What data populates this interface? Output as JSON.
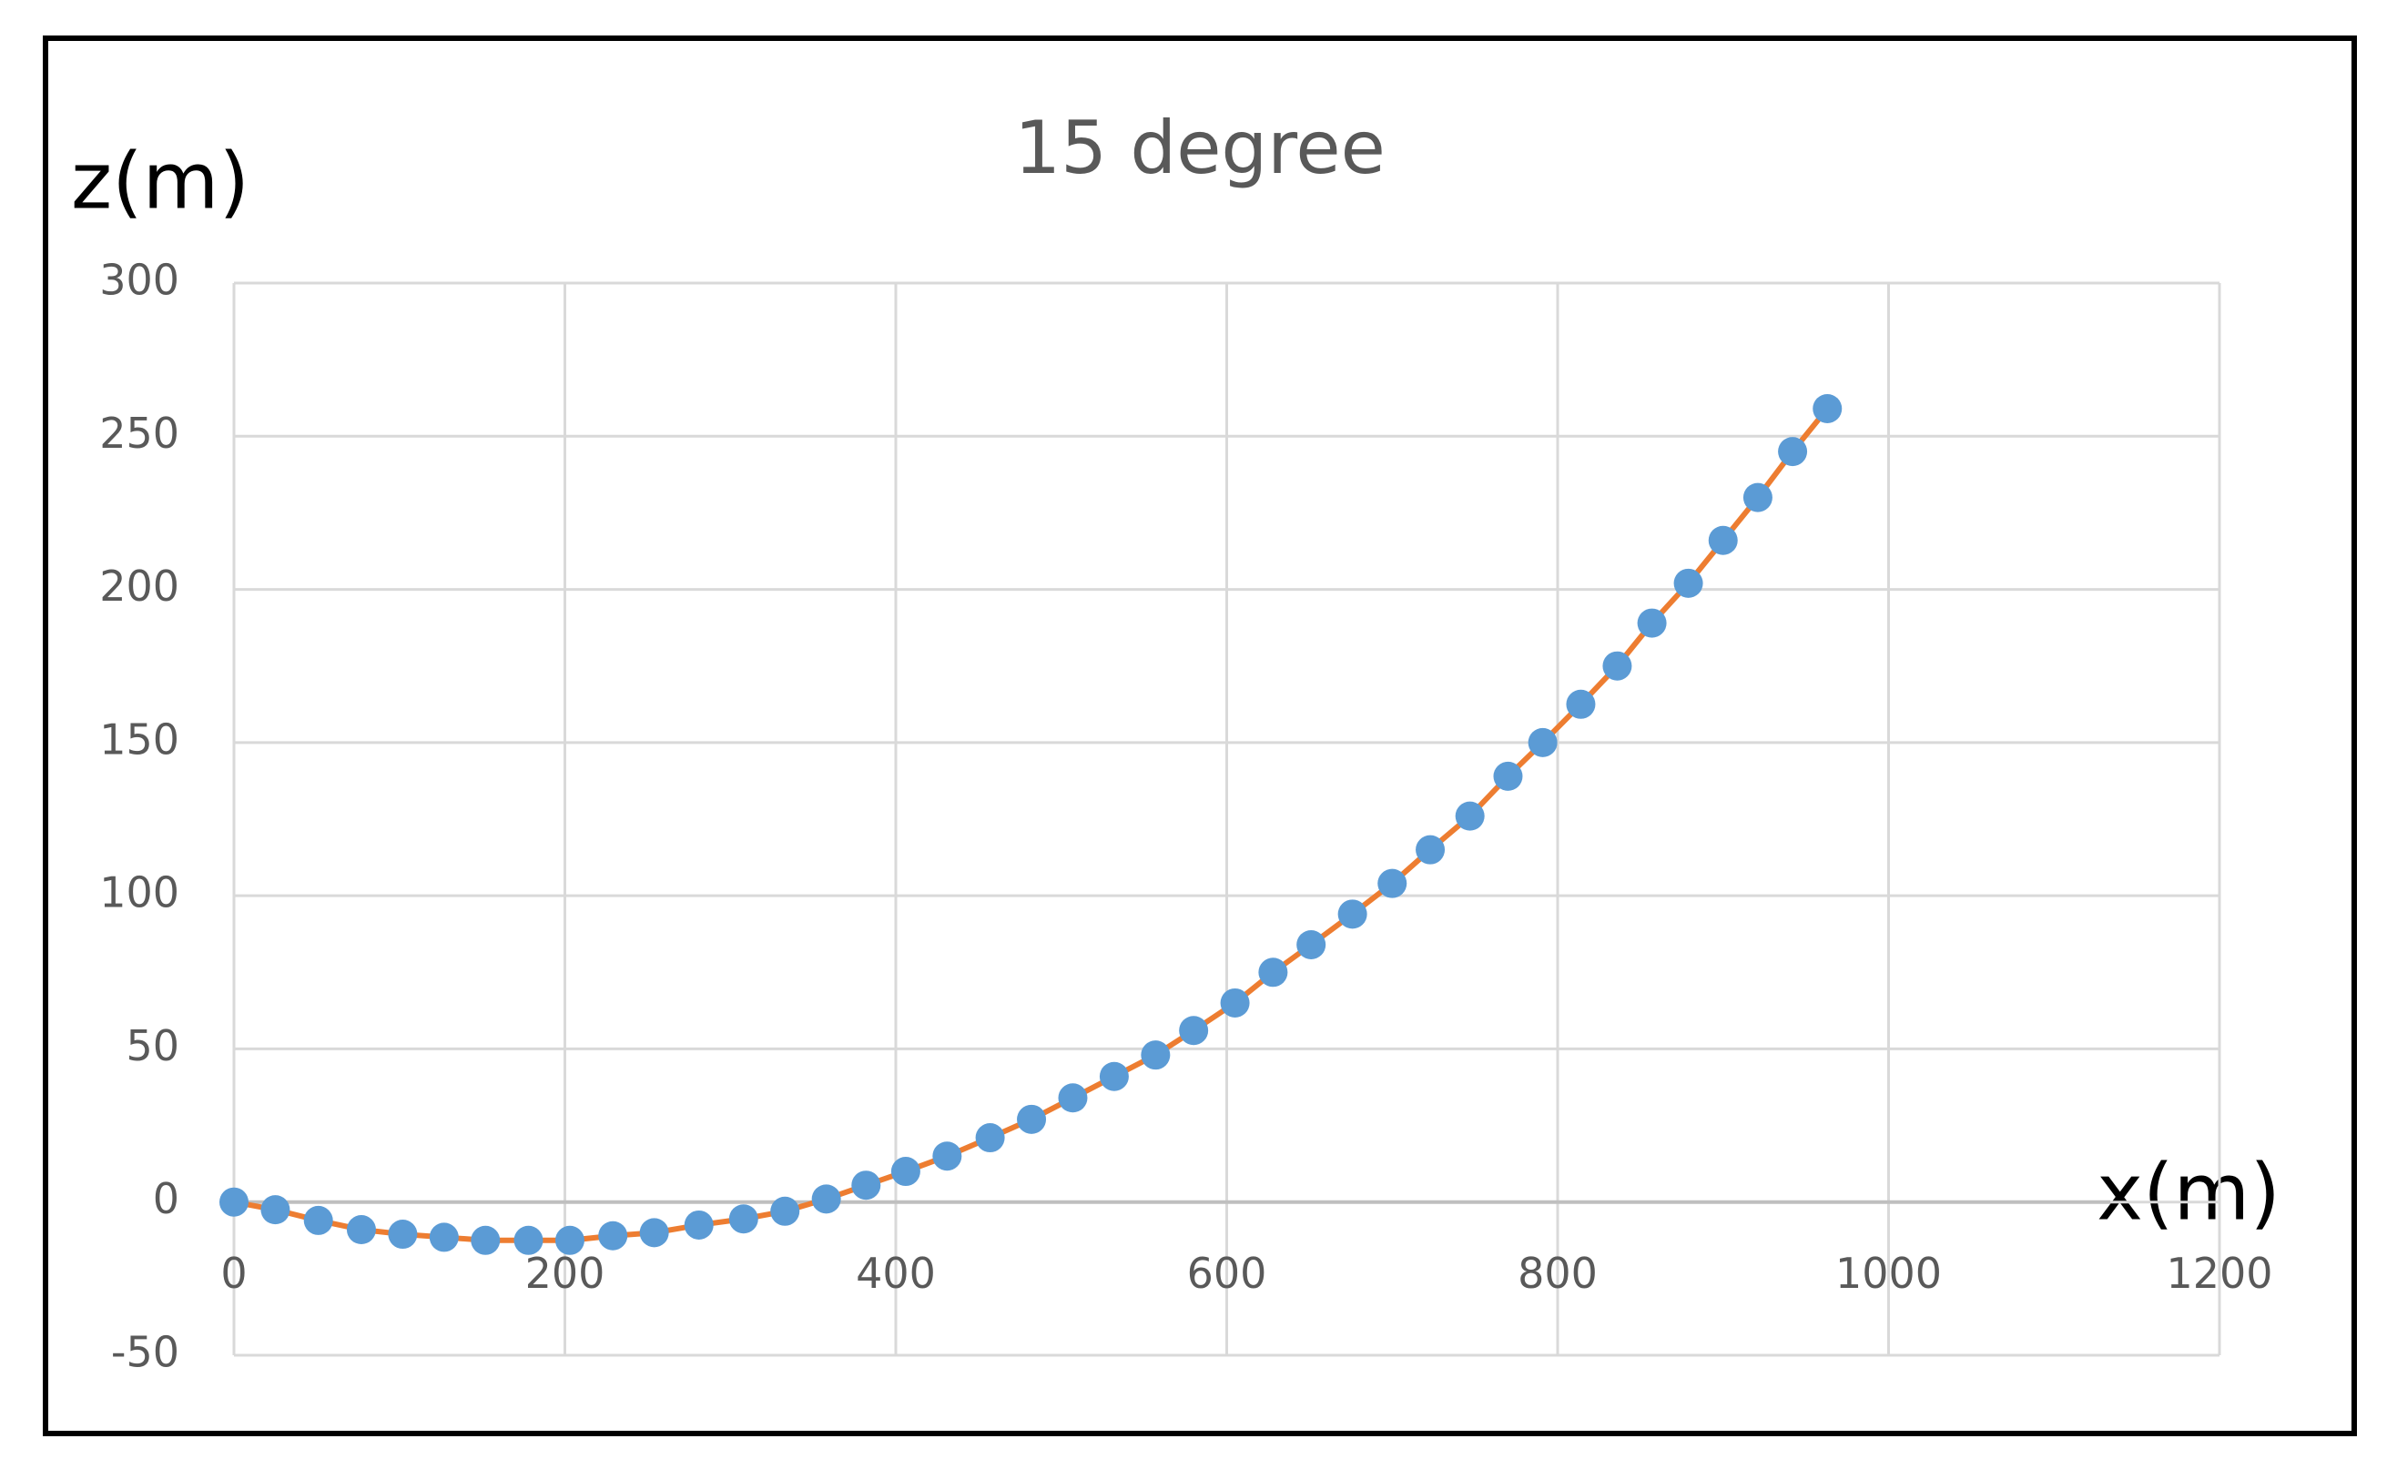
{
  "chart_data": {
    "type": "scatter",
    "title": "15 degree",
    "x_label": "x(m)",
    "y_label": "z(m)",
    "xlim": [
      0,
      1200
    ],
    "xticks": [
      0,
      200,
      400,
      600,
      800,
      1000,
      1200
    ],
    "ylim": [
      -50,
      300
    ],
    "yticks": [
      -50,
      0,
      50,
      100,
      150,
      200,
      250,
      300
    ],
    "grid": true,
    "line_color": "#ed7d31",
    "series": [
      {
        "color": "#5b9bd5",
        "x": [
          0,
          25,
          51,
          77,
          102,
          127,
          152,
          178,
          203,
          229,
          254,
          281,
          308,
          333,
          358,
          382,
          406,
          431,
          457,
          482,
          507,
          532,
          557,
          580,
          605,
          628,
          651,
          676,
          700,
          723,
          747,
          770,
          791,
          814,
          836,
          857,
          879,
          900,
          921,
          942,
          963
        ],
        "values": [
          0,
          -2.5,
          -6,
          -9,
          -10.5,
          -11.5,
          -12.5,
          -12.5,
          -12.5,
          -11,
          -10,
          -7.5,
          -5.5,
          -3,
          1,
          5.5,
          10,
          15,
          21,
          27,
          34,
          41,
          48,
          56,
          65,
          75,
          84,
          94,
          104,
          115,
          126,
          139,
          150,
          162.5,
          175,
          189,
          202,
          216,
          230,
          245,
          259
        ]
      }
    ]
  }
}
